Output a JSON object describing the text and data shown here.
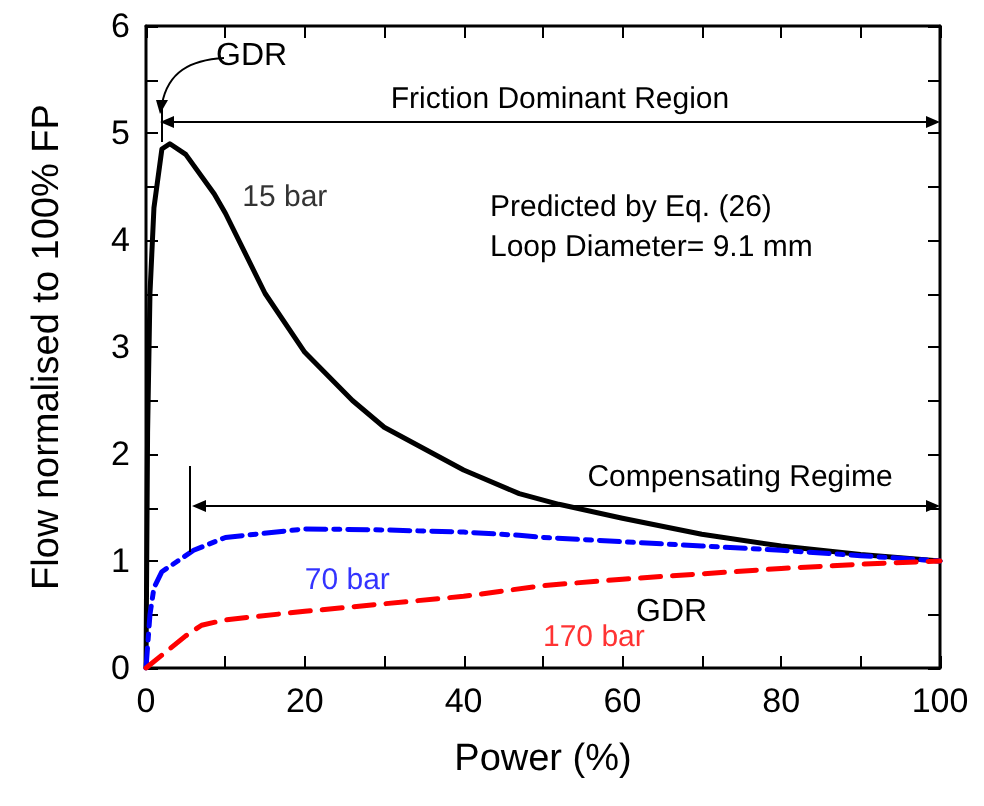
{
  "chart_data": {
    "type": "line",
    "xlabel": "Power (%)",
    "ylabel": "Flow normalised to 100% FP",
    "xlim": [
      0,
      100
    ],
    "xticks": [
      0,
      20,
      40,
      60,
      80,
      100
    ],
    "ylim": [
      0,
      6
    ],
    "yticks": [
      0,
      1,
      2,
      3,
      4,
      5,
      6
    ],
    "grid": false,
    "legend": false,
    "marker": "none",
    "series": [
      {
        "name": "15 bar",
        "color": "#000000",
        "line_style": "solid",
        "x": [
          0,
          0.2,
          0.5,
          1,
          2,
          3,
          5,
          8.6,
          10,
          15,
          20,
          26,
          30,
          40,
          47,
          52,
          60,
          70,
          80,
          90,
          100
        ],
        "values": [
          0,
          2.2,
          3.5,
          4.3,
          4.85,
          4.9,
          4.8,
          4.43,
          4.25,
          3.5,
          2.95,
          2.5,
          2.25,
          1.85,
          1.63,
          1.53,
          1.4,
          1.25,
          1.14,
          1.06,
          1.0
        ]
      },
      {
        "name": "70 bar",
        "color": "#0000ff",
        "line_style": "dashdot",
        "x": [
          0,
          0.5,
          1,
          2,
          4,
          6,
          10,
          20,
          30,
          40,
          47,
          50,
          60,
          70,
          80,
          90,
          100
        ],
        "values": [
          0,
          0.5,
          0.75,
          0.9,
          1.0,
          1.1,
          1.22,
          1.3,
          1.29,
          1.27,
          1.24,
          1.22,
          1.18,
          1.14,
          1.1,
          1.05,
          1.0
        ]
      },
      {
        "name": "170 bar",
        "color": "#ff0000",
        "line_style": "dashed",
        "x": [
          0,
          5,
          7,
          10,
          20,
          30,
          40,
          50,
          60,
          70,
          80,
          90,
          100
        ],
        "values": [
          0,
          0.3,
          0.4,
          0.45,
          0.53,
          0.6,
          0.67,
          0.77,
          0.83,
          0.88,
          0.93,
          0.97,
          1.0
        ]
      }
    ],
    "annotations": [
      "Friction Dominant Region",
      "Compensating Regime",
      "GDR",
      "GDR",
      "Predicted by Eq. (26)",
      "Loop Diameter= 9.1 mm"
    ]
  }
}
